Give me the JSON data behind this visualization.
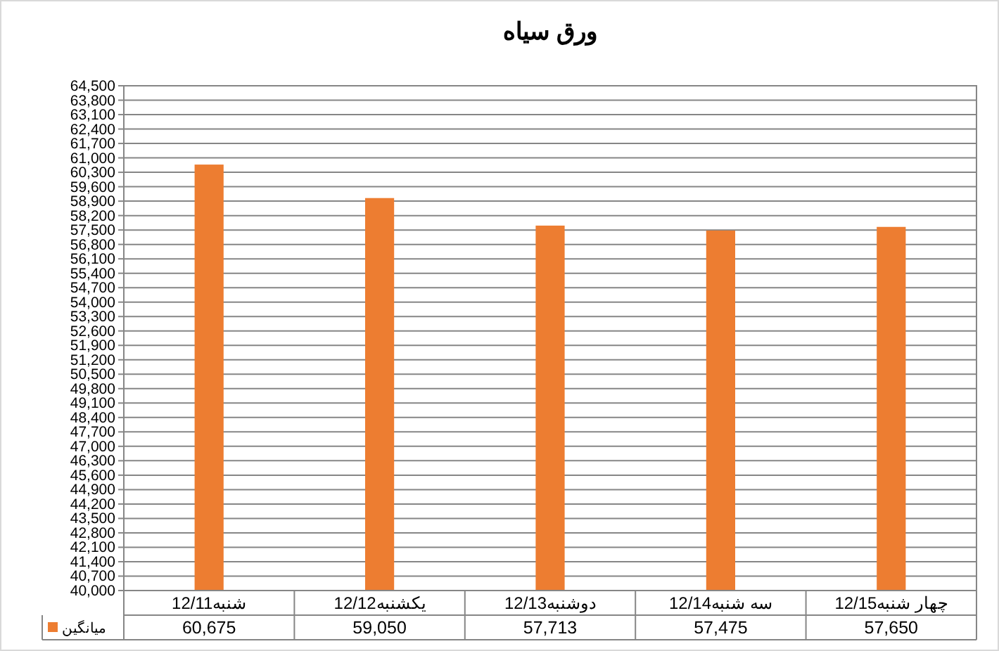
{
  "chart_data": {
    "type": "bar",
    "title": "ورق سیاه",
    "categories": [
      "شنبه12/11",
      "یکشنبه12/12",
      "دوشنبه12/13",
      "سه شنبه12/14",
      "چهار شنبه12/15"
    ],
    "series": [
      {
        "name": "میانگین",
        "color": "#ed7d31",
        "values": [
          60675,
          59050,
          57713,
          57475,
          57650
        ],
        "value_labels": [
          "60,675",
          "59,050",
          "57,713",
          "57,475",
          "57,650"
        ]
      }
    ],
    "data_labels": true,
    "ylim": [
      40000,
      64500
    ],
    "yticks": [
      {
        "value": 40000,
        "label": "40,000"
      },
      {
        "value": 40700,
        "label": "40,700"
      },
      {
        "value": 41400,
        "label": "41,400"
      },
      {
        "value": 42100,
        "label": "42,100"
      },
      {
        "value": 42800,
        "label": "42,800"
      },
      {
        "value": 43500,
        "label": "43,500"
      },
      {
        "value": 44200,
        "label": "44,200"
      },
      {
        "value": 44900,
        "label": "44,900"
      },
      {
        "value": 45600,
        "label": "45,600"
      },
      {
        "value": 46300,
        "label": "46,300"
      },
      {
        "value": 47000,
        "label": "47,000"
      },
      {
        "value": 47700,
        "label": "47,700"
      },
      {
        "value": 48400,
        "label": "48,400"
      },
      {
        "value": 49100,
        "label": "49,100"
      },
      {
        "value": 49800,
        "label": "49,800"
      },
      {
        "value": 50500,
        "label": "50,500"
      },
      {
        "value": 51200,
        "label": "51,200"
      },
      {
        "value": 51900,
        "label": "51,900"
      },
      {
        "value": 52600,
        "label": "52,600"
      },
      {
        "value": 53300,
        "label": "53,300"
      },
      {
        "value": 54000,
        "label": "54,000"
      },
      {
        "value": 54700,
        "label": "54,700"
      },
      {
        "value": 55400,
        "label": "55,400"
      },
      {
        "value": 56100,
        "label": "56,100"
      },
      {
        "value": 56800,
        "label": "56,800"
      },
      {
        "value": 57500,
        "label": "57,500"
      },
      {
        "value": 58200,
        "label": "58,200"
      },
      {
        "value": 58900,
        "label": "58,900"
      },
      {
        "value": 59600,
        "label": "59,600"
      },
      {
        "value": 60300,
        "label": "60,300"
      },
      {
        "value": 61000,
        "label": "61,000"
      },
      {
        "value": 61700,
        "label": "61,700"
      },
      {
        "value": 62400,
        "label": "62,400"
      },
      {
        "value": 63100,
        "label": "63,100"
      },
      {
        "value": 63800,
        "label": "63,800"
      },
      {
        "value": 64500,
        "label": "64,500"
      }
    ],
    "grid": "y",
    "legend": "bottom"
  }
}
